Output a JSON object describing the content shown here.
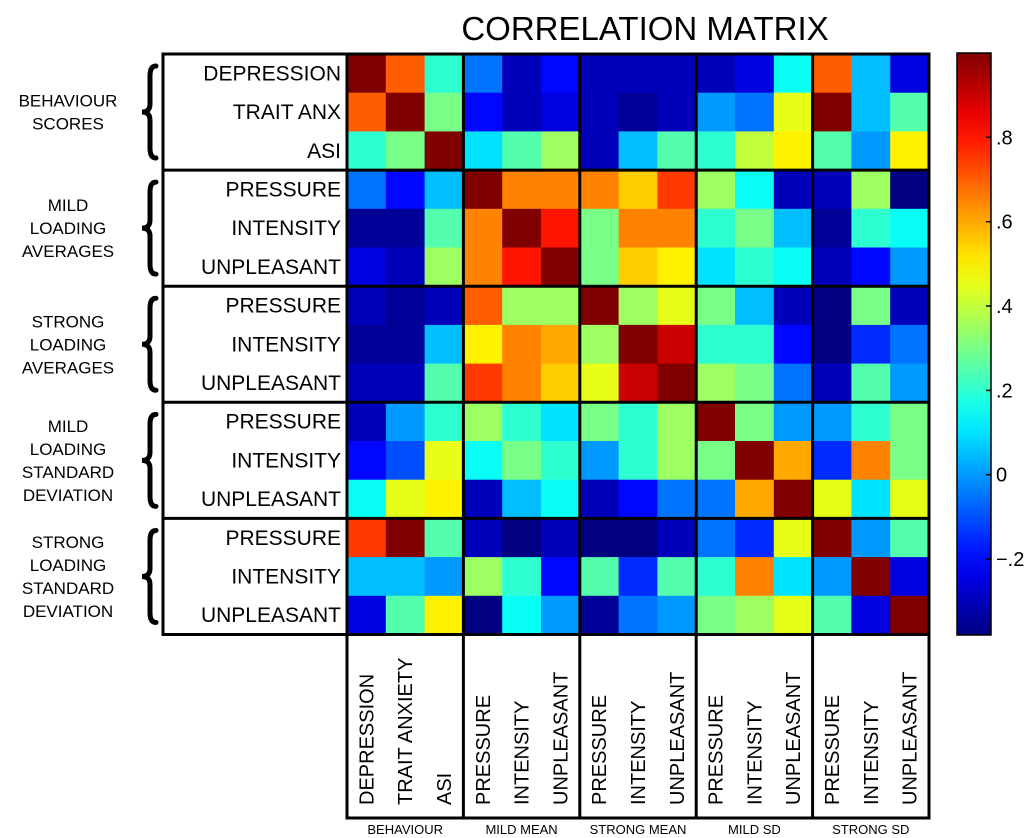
{
  "chart_data": {
    "type": "heatmap",
    "title": "CORRELATION MATRIX",
    "row_groups": [
      {
        "label": [
          "BEHAVIOUR",
          "SCORES"
        ],
        "rows": [
          "DEPRESSION",
          "TRAIT ANX",
          "ASI"
        ]
      },
      {
        "label": [
          "MILD",
          "LOADING",
          "AVERAGES"
        ],
        "rows": [
          "PRESSURE",
          "INTENSITY",
          "UNPLEASANT"
        ]
      },
      {
        "label": [
          "STRONG",
          "LOADING",
          "AVERAGES"
        ],
        "rows": [
          "PRESSURE",
          "INTENSITY",
          "UNPLEASANT"
        ]
      },
      {
        "label": [
          "MILD",
          "LOADING",
          "STANDARD",
          "DEVIATION"
        ],
        "rows": [
          "PRESSURE",
          "INTENSITY",
          "UNPLEASANT"
        ]
      },
      {
        "label": [
          "STRONG",
          "LOADING",
          "STANDARD",
          "DEVIATION"
        ],
        "rows": [
          "PRESSURE",
          "INTENSITY",
          "UNPLEASANT"
        ]
      }
    ],
    "col_groups": [
      {
        "label": "BEHAVIOUR",
        "cols": [
          "DEPRESSION",
          "TRAIT ANXIETY",
          "ASI"
        ]
      },
      {
        "label": "MILD MEAN",
        "cols": [
          "PRESSURE",
          "INTENSITY",
          "UNPLEASANT"
        ]
      },
      {
        "label": "STRONG MEAN",
        "cols": [
          "PRESSURE",
          "INTENSITY",
          "UNPLEASANT"
        ]
      },
      {
        "label": "MILD SD",
        "cols": [
          "PRESSURE",
          "INTENSITY",
          "UNPLEASANT"
        ]
      },
      {
        "label": "STRONG SD",
        "cols": [
          "PRESSURE",
          "INTENSITY",
          "UNPLEASANT"
        ]
      }
    ],
    "values": [
      [
        1.0,
        0.7,
        0.2,
        -0.05,
        -0.3,
        -0.2,
        -0.3,
        -0.3,
        -0.3,
        -0.3,
        -0.25,
        0.15,
        0.7,
        0.05,
        -0.25
      ],
      [
        0.7,
        1.0,
        0.3,
        -0.2,
        -0.3,
        -0.25,
        -0.3,
        -0.35,
        -0.3,
        0.0,
        -0.05,
        0.45,
        1.0,
        0.05,
        0.25
      ],
      [
        0.2,
        0.3,
        1.0,
        0.1,
        0.25,
        0.35,
        -0.3,
        0.05,
        0.25,
        0.2,
        0.4,
        0.5,
        0.25,
        0.0,
        0.5
      ],
      [
        -0.05,
        -0.2,
        0.05,
        1.0,
        0.65,
        0.65,
        0.65,
        0.55,
        0.75,
        0.35,
        0.15,
        -0.3,
        -0.3,
        0.35,
        -0.4
      ],
      [
        -0.35,
        -0.35,
        0.25,
        0.65,
        1.0,
        0.8,
        0.3,
        0.65,
        0.65,
        0.2,
        0.3,
        0.05,
        -0.35,
        0.2,
        0.15
      ],
      [
        -0.25,
        -0.3,
        0.35,
        0.65,
        0.8,
        1.0,
        0.3,
        0.55,
        0.5,
        0.1,
        0.2,
        0.15,
        -0.3,
        -0.2,
        0.0
      ],
      [
        -0.3,
        -0.35,
        -0.3,
        0.7,
        0.35,
        0.35,
        1.0,
        0.35,
        0.45,
        0.3,
        0.05,
        -0.3,
        -0.4,
        0.3,
        -0.3
      ],
      [
        -0.35,
        -0.35,
        0.05,
        0.5,
        0.65,
        0.6,
        0.35,
        1.0,
        0.9,
        0.2,
        0.2,
        -0.2,
        -0.4,
        -0.15,
        -0.05
      ],
      [
        -0.3,
        -0.3,
        0.25,
        0.75,
        0.65,
        0.55,
        0.45,
        0.9,
        1.0,
        0.35,
        0.3,
        -0.05,
        -0.3,
        0.25,
        0.0
      ],
      [
        -0.3,
        0.0,
        0.2,
        0.35,
        0.2,
        0.1,
        0.3,
        0.2,
        0.35,
        1.0,
        0.3,
        0.0,
        0.0,
        0.2,
        0.3
      ],
      [
        -0.2,
        -0.1,
        0.45,
        0.15,
        0.3,
        0.2,
        0.0,
        0.2,
        0.35,
        0.3,
        1.0,
        0.6,
        -0.15,
        0.65,
        0.3
      ],
      [
        0.15,
        0.45,
        0.5,
        -0.3,
        0.05,
        0.15,
        -0.3,
        -0.2,
        -0.05,
        -0.05,
        0.6,
        1.0,
        0.45,
        0.1,
        0.45
      ],
      [
        0.75,
        1.0,
        0.25,
        -0.3,
        -0.4,
        -0.3,
        -0.4,
        -0.4,
        -0.3,
        -0.05,
        -0.15,
        0.45,
        1.0,
        0.0,
        0.25
      ],
      [
        0.05,
        0.05,
        0.0,
        0.35,
        0.2,
        -0.2,
        0.25,
        -0.15,
        0.25,
        0.2,
        0.65,
        0.1,
        0.0,
        1.0,
        -0.25
      ],
      [
        -0.25,
        0.25,
        0.5,
        -0.45,
        0.15,
        0.0,
        -0.35,
        -0.05,
        0.0,
        0.3,
        0.35,
        0.45,
        0.25,
        -0.25,
        1.0
      ]
    ],
    "colorbar": {
      "vmin": -0.38,
      "vmax": 1.0,
      "ticks": [
        -0.2,
        0,
        0.2,
        0.4,
        0.6,
        0.8
      ],
      "tick_labels": [
        "−.2",
        "0",
        ".2",
        ".4",
        ".6",
        ".8"
      ],
      "colormap": "jet"
    }
  }
}
